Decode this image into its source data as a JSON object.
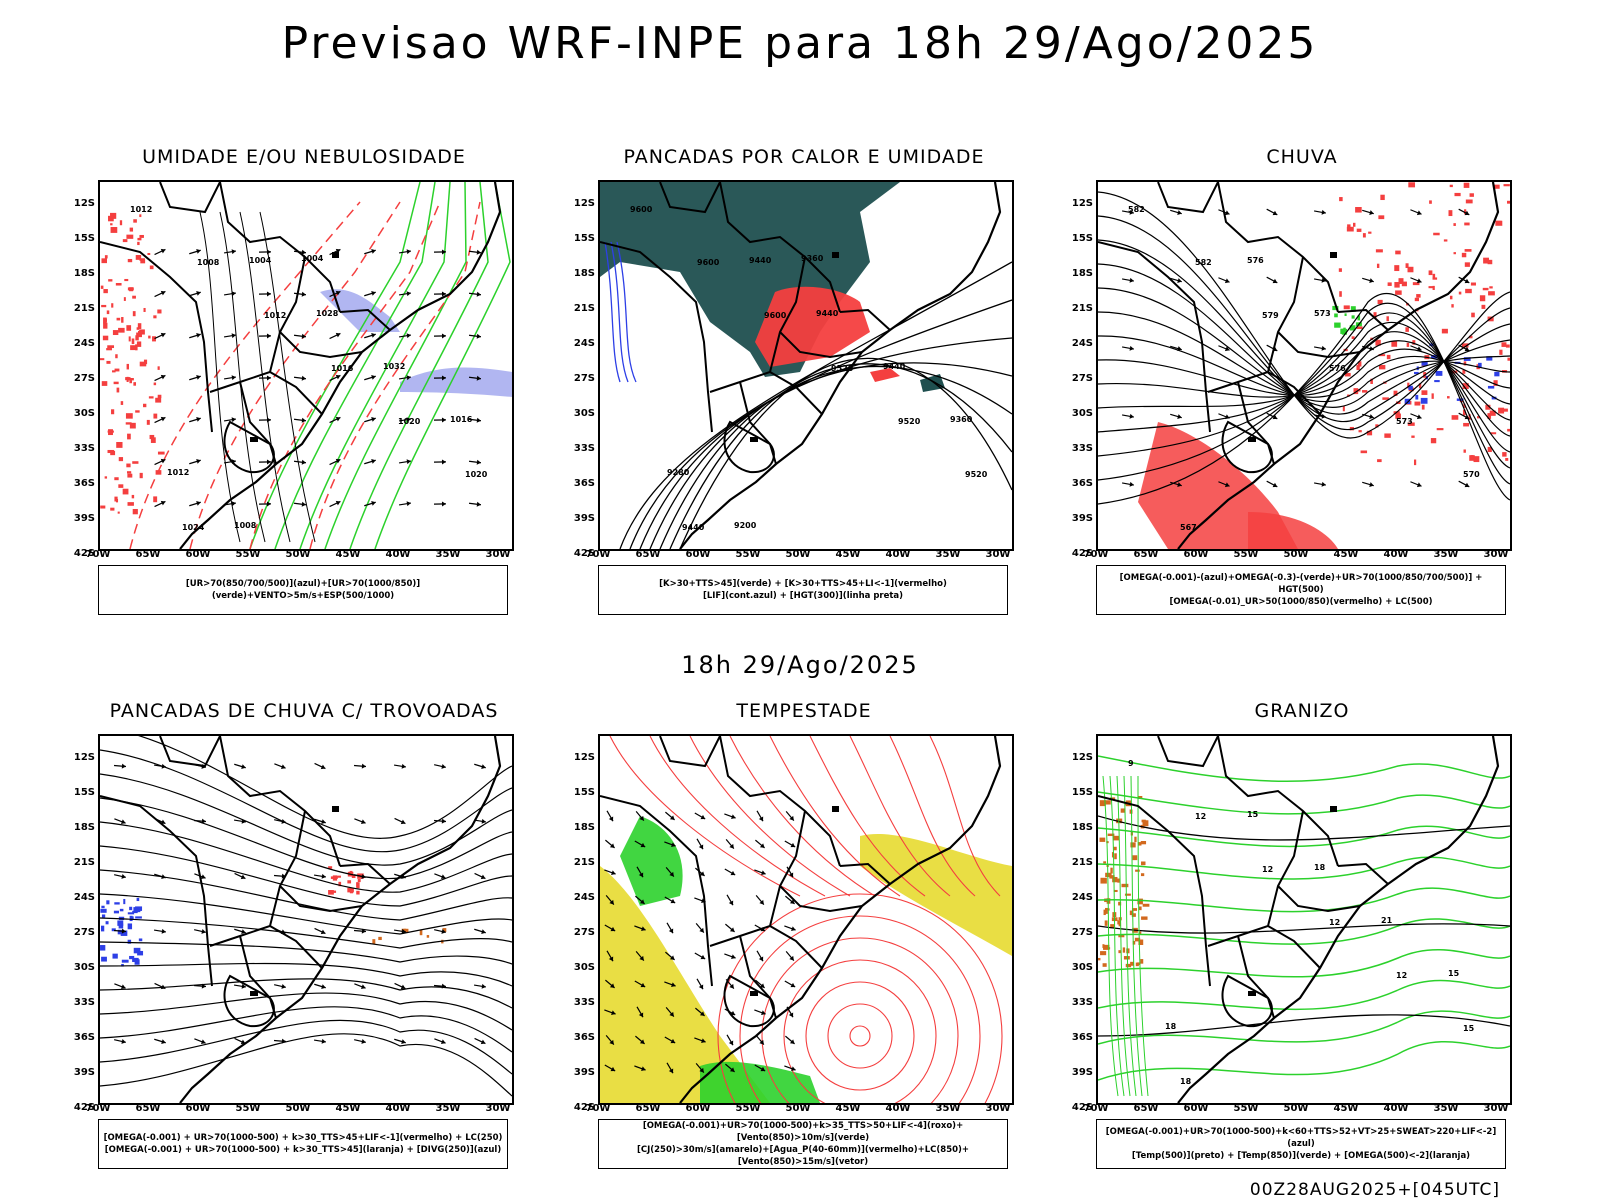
{
  "title": "Previsao WRF-INPE  para 18h 29/Ago/2025",
  "subtitle": "18h 29/Ago/2025",
  "footer": "00Z28AUG2025+[045UTC]",
  "lat_ticks": [
    "12S",
    "15S",
    "18S",
    "21S",
    "24S",
    "27S",
    "30S",
    "33S",
    "36S",
    "39S",
    "42S"
  ],
  "lon_ticks": [
    "70W",
    "65W",
    "60W",
    "55W",
    "50W",
    "45W",
    "40W",
    "35W",
    "30W"
  ],
  "colors": {
    "humid_blue": "#a9aeef",
    "green": "#2cd12c",
    "red": "#f43f3f",
    "teal": "#1f4f4f",
    "blue": "#2d3fe6",
    "yellow": "#e8dc3a",
    "orange": "#d2691e"
  },
  "panels": [
    {
      "title": "UMIDADE E/OU NEBULOSIDADE",
      "legend": [
        "[UR>70(850/700/500)](azul)+[UR>70(1000/850)](verde)+VENTO>5m/s+ESP(500/1000)"
      ],
      "labels": [
        "1012",
        "1008",
        "1012",
        "1016",
        "1020",
        "1020",
        "1024",
        "1004",
        "1028",
        "1032",
        "1016",
        "1012",
        "1008",
        "1004"
      ]
    },
    {
      "title": "PANCADAS POR CALOR E UMIDADE",
      "legend": [
        "[K>30+TTS>45](verde) + [K>30+TTS>45+LI<-1](vermelho)",
        "[LIF](cont.azul) + [HGT(300)](linha preta)"
      ],
      "labels": [
        "9600",
        "9600",
        "9600",
        "9520",
        "9520",
        "9520",
        "9440",
        "9440",
        "9440",
        "9440",
        "9360",
        "9280",
        "9200",
        "9360"
      ]
    },
    {
      "title": "CHUVA",
      "legend": [
        "[OMEGA(-0.001)-(azul)+OMEGA(-0.3)-(verde)+UR>70(1000/850/700/500)] + HGT(500)",
        "[OMEGA(-0.01)_UR>50(1000/850)(vermelho) + LC(500)"
      ],
      "labels": [
        "582",
        "582",
        "579",
        "576",
        "573",
        "570",
        "567",
        "576",
        "573"
      ]
    },
    {
      "title": "PANCADAS DE CHUVA C/ TROVOADAS",
      "legend": [
        "[OMEGA(-0.001) + UR>70(1000-500) + k>30_TTS>45+LIF<-1](vermelho) + LC(250)",
        "[OMEGA(-0.001) + UR>70(1000-500) + k>30_TTS>45](laranja) + [DIVG(250)](azul)"
      ],
      "labels": []
    },
    {
      "title": "TEMPESTADE",
      "legend": [
        "[OMEGA(-0.001)+UR>70(1000-500)+k>35_TTS>50+LIF<-4](roxo)+[Vento(850)>10m/s](verde)",
        "[CJ(250)>30m/s](amarelo)+[Agua_P(40-60mm)](vermelho)+LC(850)+[Vento(850)>15m/s](vetor)"
      ],
      "labels": []
    },
    {
      "title": "GRANIZO",
      "legend": [
        "[OMEGA(-0.001)+UR>70(1000-500)+k<60+TTS>52+VT>25+SWEAT>220+LIF<-2](azul)",
        "[Temp(500)](preto) + [Temp(850)](verde) + [OMEGA(500)<-2](laranja)"
      ],
      "labels": [
        "9",
        "12",
        "12",
        "12",
        "12",
        "15",
        "18",
        "15",
        "18",
        "21",
        "15",
        "18"
      ]
    }
  ]
}
